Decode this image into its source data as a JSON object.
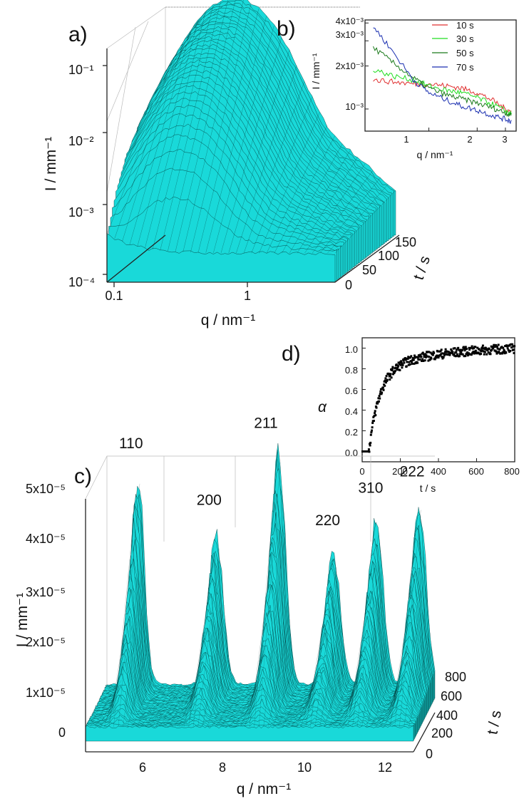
{
  "colors": {
    "surface": "#19d9d9",
    "mesh": "#033d3d",
    "axis": "#222222"
  },
  "chart_data": [
    {
      "panel": "a)",
      "type": "area",
      "description_kind": "3d-surface",
      "xlabel": "q / nm⁻¹",
      "ylabel": "I / mm⁻¹",
      "zlabel": "t / s",
      "xscale": "log",
      "yscale": "log",
      "x_ticks": [
        "0.1",
        "1"
      ],
      "y_ticks": [
        "10⁻⁴",
        "10⁻³",
        "10⁻²",
        "10⁻¹"
      ],
      "z_ticks": [
        "0",
        "50",
        "100",
        "150"
      ],
      "xlim": [
        0.1,
        3.5
      ],
      "ylim": [
        0.0001,
        0.3
      ],
      "zlim": [
        0,
        150
      ],
      "profiles": [
        {
          "t": 0,
          "x": [
            0.12,
            0.2,
            0.3,
            0.5,
            1,
            2,
            3.5
          ],
          "y": [
            0.0004,
            0.0003,
            0.00027,
            0.00026,
            0.00026,
            0.00025,
            0.00025
          ]
        },
        {
          "t": 150,
          "x": [
            0.12,
            0.2,
            0.3,
            0.5,
            1,
            2,
            3.5
          ],
          "y": [
            0.08,
            0.15,
            0.25,
            0.03,
            0.0015,
            0.0003,
            0.00025
          ]
        }
      ]
    },
    {
      "panel": "b)",
      "type": "line",
      "xlabel": "q / nm⁻¹",
      "ylabel": "I / mm⁻¹",
      "xscale": "log",
      "yscale": "log",
      "x_ticks": [
        "1",
        "2",
        "3"
      ],
      "y_ticks": [
        "10⁻³",
        "2x10⁻³",
        "3x10⁻³",
        "4x10⁻³"
      ],
      "xlim": [
        0.4,
        3.5
      ],
      "ylim": [
        0.0007,
        0.0042
      ],
      "x": [
        0.45,
        0.6,
        0.8,
        1,
        1.3,
        1.6,
        2,
        2.5,
        3,
        3.3
      ],
      "series": [
        {
          "name": "10 s",
          "color": "#e03030",
          "values": [
            0.0016,
            0.00155,
            0.0015,
            0.0015,
            0.00145,
            0.0014,
            0.0013,
            0.00115,
            0.001,
            0.00095
          ]
        },
        {
          "name": "30 s",
          "color": "#22dd22",
          "values": [
            0.0019,
            0.0017,
            0.0016,
            0.00145,
            0.00135,
            0.0013,
            0.0012,
            0.00108,
            0.00097,
            0.00092
          ]
        },
        {
          "name": "50 s",
          "color": "#1a7a1a",
          "values": [
            0.0027,
            0.0021,
            0.00165,
            0.0014,
            0.00125,
            0.00118,
            0.0011,
            0.00102,
            0.00094,
            0.0009
          ]
        },
        {
          "name": "70 s",
          "color": "#1a2fb0",
          "values": [
            0.0038,
            0.0025,
            0.0016,
            0.0013,
            0.00115,
            0.00105,
            0.00098,
            0.0009,
            0.00085,
            0.00082
          ]
        }
      ],
      "legend_position": "top-right"
    },
    {
      "panel": "c)",
      "type": "area",
      "description_kind": "3d-surface",
      "xlabel": "q / nm⁻¹",
      "ylabel": "I / mm⁻¹",
      "zlabel": "t / s",
      "x_ticks": [
        "6",
        "8",
        "10",
        "12"
      ],
      "y_ticks": [
        "0",
        "1x10⁻⁵",
        "2x10⁻⁵",
        "3x10⁻⁵",
        "4x10⁻⁵",
        "5x10⁻⁵"
      ],
      "z_ticks": [
        "0",
        "200",
        "400",
        "600",
        "800"
      ],
      "xlim": [
        4.6,
        13.0
      ],
      "ylim": [
        0,
        6e-05
      ],
      "zlim": [
        0,
        800
      ],
      "peaks": [
        {
          "label": "110",
          "q": 5.4,
          "I": 5.6e-05
        },
        {
          "label": "200",
          "q": 7.4,
          "I": 4.2e-05
        },
        {
          "label": "211",
          "q": 9.0,
          "I": 6.1e-05
        },
        {
          "label": "220",
          "q": 10.4,
          "I": 3.7e-05
        },
        {
          "label": "310",
          "q": 11.5,
          "I": 4.5e-05
        },
        {
          "label": "222",
          "q": 12.6,
          "I": 4.9e-05
        }
      ]
    },
    {
      "panel": "d)",
      "type": "scatter",
      "xlabel": "t / s",
      "ylabel": "α",
      "x_ticks": [
        "0",
        "200",
        "400",
        "600",
        "800"
      ],
      "y_ticks": [
        "0.0",
        "0.2",
        "0.4",
        "0.6",
        "0.8",
        "1.0"
      ],
      "xlim": [
        0,
        800
      ],
      "ylim": [
        -0.1,
        1.1
      ],
      "model": {
        "onset_t": 35,
        "rate": 0.018,
        "slow_rate": 0.003
      }
    }
  ]
}
